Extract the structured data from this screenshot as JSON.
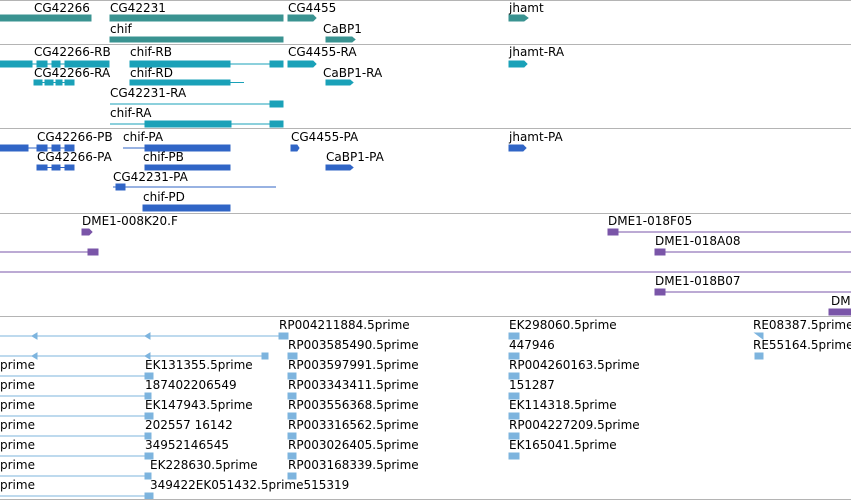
{
  "tracks": {
    "genes": {
      "colors": {
        "feature": "#3a9391"
      },
      "labels": [
        "CG42266",
        "CG42231",
        "CG4455",
        "jhamt",
        "chif",
        "CaBP1"
      ]
    },
    "transcripts": {
      "colors": {
        "feature": "#1aa1b8"
      },
      "labels": [
        "CG42266-RB",
        "chif-RB",
        "CG4455-RA",
        "jhamt-RA",
        "CG42266-RA",
        "chif-RD",
        "CaBP1-RA",
        "CG42231-RA",
        "chif-RA"
      ]
    },
    "proteins": {
      "colors": {
        "feature": "#3065c6"
      },
      "labels": [
        "CG42266-PB",
        "chif-PA",
        "CG4455-PA",
        "jhamt-PA",
        "CG42266-PA",
        "chif-PB",
        "CaBP1-PA",
        "CG42231-PA",
        "chif-PD"
      ]
    },
    "bac_clones": {
      "colors": {
        "feature": "#7a55a8"
      },
      "labels": [
        "DME1-008K20.F",
        "DME1-018F05",
        "DME1-018A08",
        "DME1-018B07",
        "DM"
      ]
    },
    "ests": {
      "colors": {
        "feature": "#7db4de"
      },
      "labels": [
        "RP004211884.5prime",
        "EK298060.5prime",
        "RE08387.5prime",
        "RP003585490.5prime",
        "447946",
        "RE55164.5prime",
        "prime",
        "EK131355.5prime",
        "RP003597991.5prime",
        "RP004260163.5prime",
        "prime",
        "187402206549",
        "RP003343411.5prime",
        "151287",
        "prime",
        "EK147943.5prime",
        "RP003556368.5prime",
        "EK114318.5prime",
        "prime",
        "202557 16142",
        "RP003316562.5prime",
        "RP004227209.5prime",
        "prime",
        "34952146545",
        "RP003026405.5prime",
        "EK165041.5prime",
        "prime",
        "EK228630.5prime",
        "RP003168339.5prime",
        "prime",
        "349422EK051432.5prime515319"
      ]
    }
  }
}
